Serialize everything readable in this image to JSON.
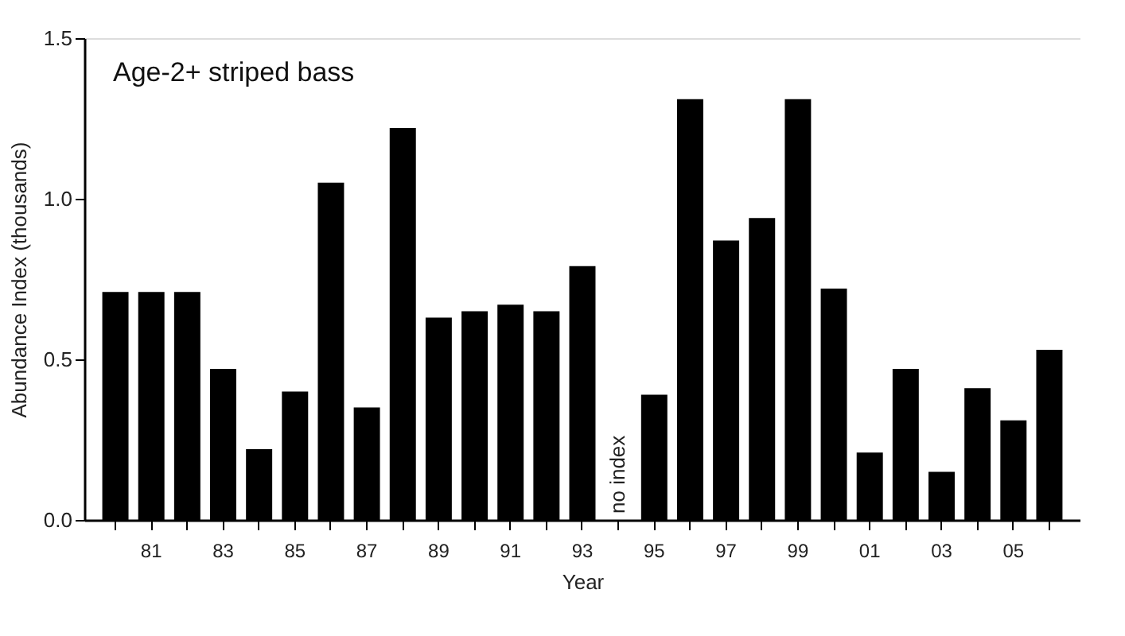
{
  "chart_data": {
    "type": "bar",
    "title": "Age-2+ striped bass",
    "xlabel": "Year",
    "ylabel": "Abundance Index (thousands)",
    "categories": [
      null,
      "81",
      null,
      "83",
      null,
      "85",
      null,
      "87",
      null,
      "89",
      null,
      "91",
      null,
      "93",
      null,
      "95",
      null,
      "97",
      null,
      "99",
      null,
      "01",
      null,
      "03",
      null,
      "05",
      null
    ],
    "values": [
      0.71,
      0.71,
      0.71,
      0.47,
      0.22,
      0.4,
      1.05,
      0.35,
      1.22,
      0.63,
      0.65,
      0.67,
      0.65,
      0.79,
      null,
      0.39,
      1.31,
      0.87,
      0.94,
      1.31,
      0.72,
      0.21,
      0.47,
      0.15,
      0.41,
      0.31,
      0.53
    ],
    "color": "#000000",
    "ylim": [
      0,
      1.5
    ],
    "yticks": [
      {
        "value": 0,
        "label": "0.0"
      },
      {
        "value": 0.5,
        "label": "0.5"
      },
      {
        "value": 1,
        "label": "1.0"
      },
      1.5
    ],
    "annotations": [
      "no index"
    ],
    "grid": false
  }
}
